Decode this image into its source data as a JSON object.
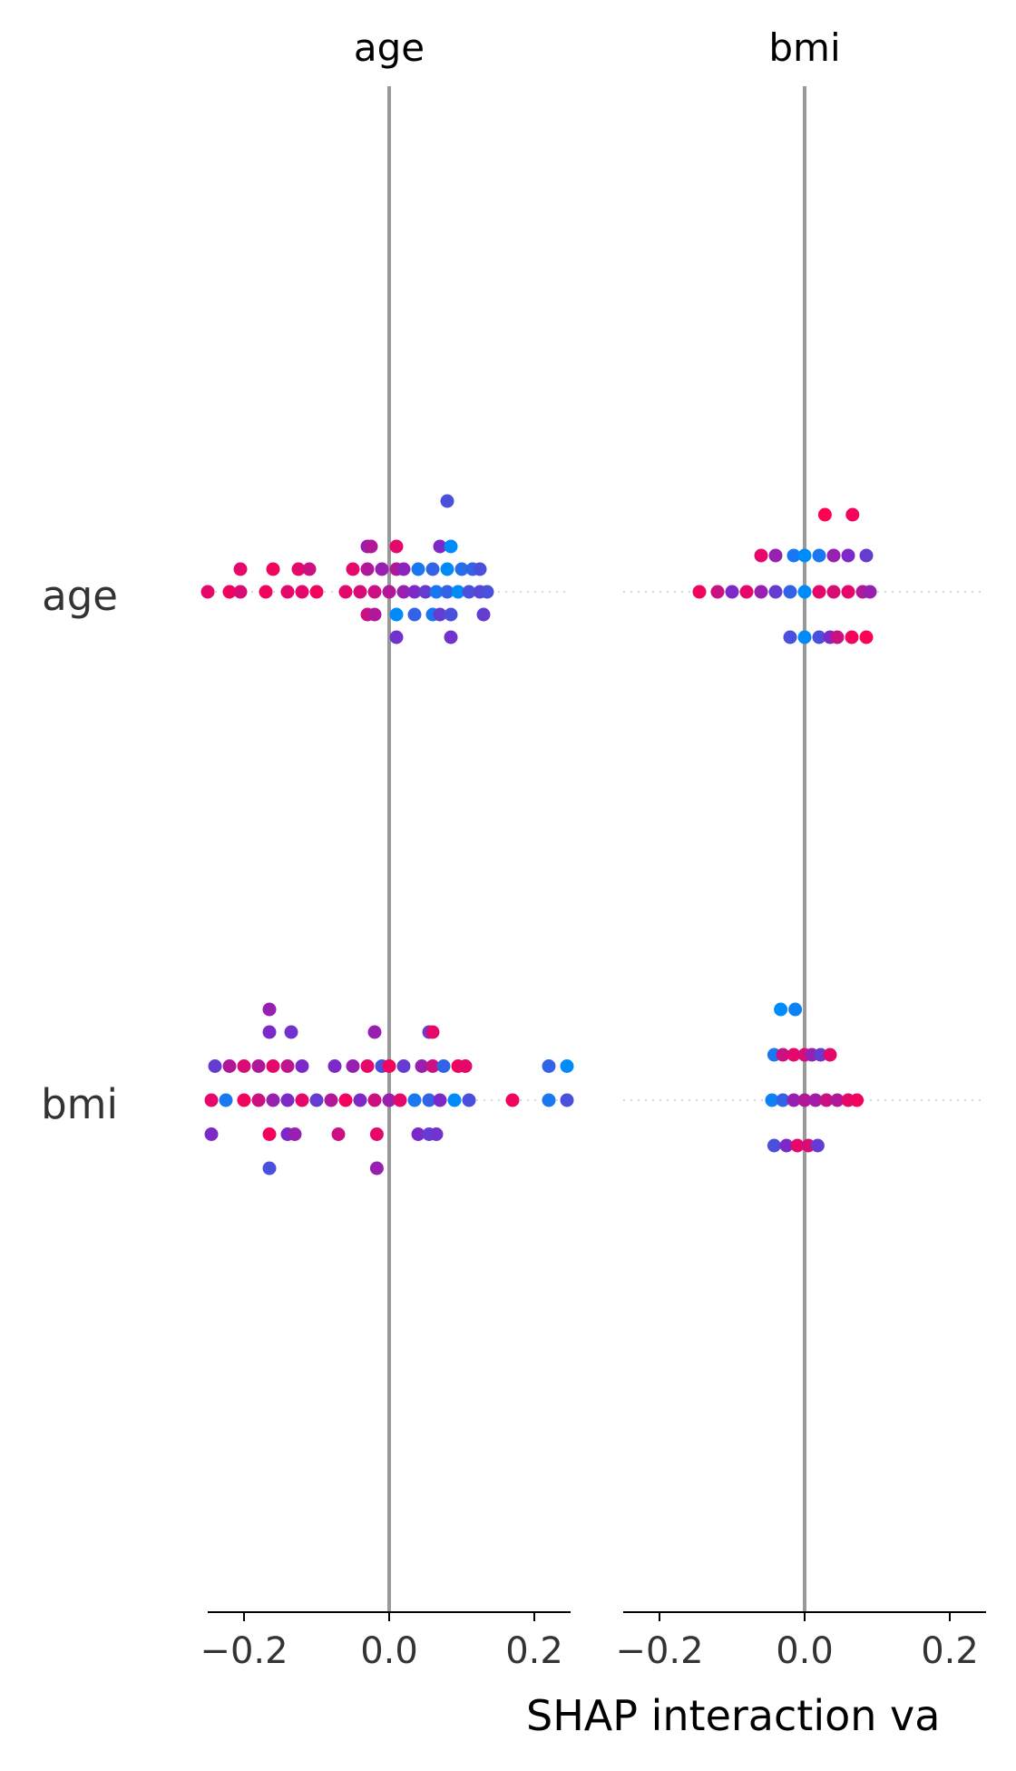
{
  "chart_data": {
    "type": "scatter",
    "title": "",
    "xlabel": "SHAP interaction va",
    "column_titles": [
      "age",
      "bmi"
    ],
    "row_labels": [
      "age",
      "bmi"
    ],
    "xlim": [
      -0.25,
      0.25
    ],
    "xticks": [
      -0.2,
      0.0,
      0.2
    ],
    "xtick_labels": [
      "−0.2",
      "0.0",
      "0.2"
    ],
    "zero_line": true,
    "grid": false,
    "legend": "none",
    "colors": {
      "low": "#008bfb",
      "high": "#ff0052",
      "zero_line": "#999999",
      "guide": "#cccccc",
      "axis": "#000000"
    },
    "note_color": "feature value from low (blue) to high (red)",
    "panels": [
      {
        "row": "age",
        "column": "age",
        "points": [
          {
            "x": 0.08,
            "offset": 2,
            "c": 0.3
          },
          {
            "x": -0.03,
            "offset": 1,
            "c": 0.6
          },
          {
            "x": -0.025,
            "offset": 1,
            "c": 0.7
          },
          {
            "x": 0.01,
            "offset": 1,
            "c": 0.9
          },
          {
            "x": 0.07,
            "offset": 1,
            "c": 0.5
          },
          {
            "x": 0.085,
            "offset": 1,
            "c": 0.0
          },
          {
            "x": -0.205,
            "offset": 0.5,
            "c": 0.9
          },
          {
            "x": -0.16,
            "offset": 0.5,
            "c": 0.95
          },
          {
            "x": -0.125,
            "offset": 0.5,
            "c": 0.9
          },
          {
            "x": -0.11,
            "offset": 0.5,
            "c": 0.8
          },
          {
            "x": -0.05,
            "offset": 0.5,
            "c": 0.9
          },
          {
            "x": -0.03,
            "offset": 0.5,
            "c": 0.7
          },
          {
            "x": -0.01,
            "offset": 0.5,
            "c": 0.6
          },
          {
            "x": 0.01,
            "offset": 0.5,
            "c": 0.7
          },
          {
            "x": 0.02,
            "offset": 0.5,
            "c": 0.55
          },
          {
            "x": 0.04,
            "offset": 0.5,
            "c": 0.1
          },
          {
            "x": 0.06,
            "offset": 0.5,
            "c": 0.2
          },
          {
            "x": 0.08,
            "offset": 0.5,
            "c": 0.0
          },
          {
            "x": 0.1,
            "offset": 0.5,
            "c": 0.15
          },
          {
            "x": 0.115,
            "offset": 0.5,
            "c": 0.2
          },
          {
            "x": 0.125,
            "offset": 0.5,
            "c": 0.3
          },
          {
            "x": -0.25,
            "offset": 0,
            "c": 0.9
          },
          {
            "x": -0.22,
            "offset": 0,
            "c": 0.95
          },
          {
            "x": -0.205,
            "offset": 0,
            "c": 0.85
          },
          {
            "x": -0.17,
            "offset": 0,
            "c": 0.95
          },
          {
            "x": -0.14,
            "offset": 0,
            "c": 0.9
          },
          {
            "x": -0.12,
            "offset": 0,
            "c": 0.9
          },
          {
            "x": -0.1,
            "offset": 0,
            "c": 0.95
          },
          {
            "x": -0.06,
            "offset": 0,
            "c": 0.9
          },
          {
            "x": -0.04,
            "offset": 0,
            "c": 0.85
          },
          {
            "x": -0.02,
            "offset": 0,
            "c": 0.8
          },
          {
            "x": 0.0,
            "offset": 0,
            "c": 0.7
          },
          {
            "x": 0.02,
            "offset": 0,
            "c": 0.6
          },
          {
            "x": 0.035,
            "offset": 0,
            "c": 0.5
          },
          {
            "x": 0.05,
            "offset": 0,
            "c": 0.4
          },
          {
            "x": 0.065,
            "offset": 0,
            "c": 0.1
          },
          {
            "x": 0.08,
            "offset": 0,
            "c": 0.2
          },
          {
            "x": 0.095,
            "offset": 0,
            "c": 0.0
          },
          {
            "x": 0.11,
            "offset": 0,
            "c": 0.3
          },
          {
            "x": 0.125,
            "offset": 0,
            "c": 0.35
          },
          {
            "x": 0.135,
            "offset": 0,
            "c": 0.3
          },
          {
            "x": -0.03,
            "offset": -0.5,
            "c": 0.8
          },
          {
            "x": -0.02,
            "offset": -0.5,
            "c": 0.7
          },
          {
            "x": 0.01,
            "offset": -0.5,
            "c": 0.0
          },
          {
            "x": 0.035,
            "offset": -0.5,
            "c": 0.2
          },
          {
            "x": 0.06,
            "offset": -0.5,
            "c": 0.1
          },
          {
            "x": 0.07,
            "offset": -0.5,
            "c": 0.4
          },
          {
            "x": 0.085,
            "offset": -0.5,
            "c": 0.3
          },
          {
            "x": 0.13,
            "offset": -0.5,
            "c": 0.4
          },
          {
            "x": 0.01,
            "offset": -1,
            "c": 0.45
          },
          {
            "x": 0.085,
            "offset": -1,
            "c": 0.45
          }
        ]
      },
      {
        "row": "age",
        "column": "bmi",
        "points": [
          {
            "x": 0.028,
            "offset": 1.7,
            "c": 1.0
          },
          {
            "x": 0.066,
            "offset": 1.7,
            "c": 0.95
          },
          {
            "x": -0.06,
            "offset": 0.8,
            "c": 0.9
          },
          {
            "x": -0.04,
            "offset": 0.8,
            "c": 0.6
          },
          {
            "x": -0.015,
            "offset": 0.8,
            "c": 0.1
          },
          {
            "x": 0.0,
            "offset": 0.8,
            "c": 0.0
          },
          {
            "x": 0.02,
            "offset": 0.8,
            "c": 0.1
          },
          {
            "x": 0.04,
            "offset": 0.8,
            "c": 0.6
          },
          {
            "x": 0.06,
            "offset": 0.8,
            "c": 0.5
          },
          {
            "x": 0.085,
            "offset": 0.8,
            "c": 0.4
          },
          {
            "x": -0.145,
            "offset": 0,
            "c": 0.95
          },
          {
            "x": -0.12,
            "offset": 0,
            "c": 0.8
          },
          {
            "x": -0.1,
            "offset": 0,
            "c": 0.5
          },
          {
            "x": -0.08,
            "offset": 0,
            "c": 0.9
          },
          {
            "x": -0.06,
            "offset": 0,
            "c": 0.6
          },
          {
            "x": -0.04,
            "offset": 0,
            "c": 0.4
          },
          {
            "x": -0.02,
            "offset": 0,
            "c": 0.2
          },
          {
            "x": 0.0,
            "offset": 0,
            "c": 0.0
          },
          {
            "x": 0.02,
            "offset": 0,
            "c": 0.9
          },
          {
            "x": 0.04,
            "offset": 0,
            "c": 0.85
          },
          {
            "x": 0.06,
            "offset": 0,
            "c": 0.9
          },
          {
            "x": 0.08,
            "offset": 0,
            "c": 0.7
          },
          {
            "x": 0.09,
            "offset": 0,
            "c": 0.6
          },
          {
            "x": -0.02,
            "offset": -1,
            "c": 0.3
          },
          {
            "x": 0.0,
            "offset": -1,
            "c": 0.0
          },
          {
            "x": 0.02,
            "offset": -1,
            "c": 0.3
          },
          {
            "x": 0.035,
            "offset": -1,
            "c": 0.5
          },
          {
            "x": 0.045,
            "offset": -1,
            "c": 0.8
          },
          {
            "x": 0.065,
            "offset": -1,
            "c": 0.95
          },
          {
            "x": 0.085,
            "offset": -1,
            "c": 1.0
          }
        ]
      },
      {
        "row": "bmi",
        "column": "age",
        "points": [
          {
            "x": -0.165,
            "offset": 2,
            "c": 0.6
          },
          {
            "x": -0.165,
            "offset": 1.5,
            "c": 0.5
          },
          {
            "x": -0.135,
            "offset": 1.5,
            "c": 0.45
          },
          {
            "x": -0.02,
            "offset": 1.5,
            "c": 0.6
          },
          {
            "x": 0.055,
            "offset": 1.5,
            "c": 0.4
          },
          {
            "x": 0.06,
            "offset": 1.5,
            "c": 0.9
          },
          {
            "x": -0.24,
            "offset": 0.75,
            "c": 0.4
          },
          {
            "x": -0.22,
            "offset": 0.75,
            "c": 0.7
          },
          {
            "x": -0.2,
            "offset": 0.75,
            "c": 0.85
          },
          {
            "x": -0.18,
            "offset": 0.75,
            "c": 0.7
          },
          {
            "x": -0.16,
            "offset": 0.75,
            "c": 0.9
          },
          {
            "x": -0.14,
            "offset": 0.75,
            "c": 0.75
          },
          {
            "x": -0.12,
            "offset": 0.75,
            "c": 0.5
          },
          {
            "x": -0.075,
            "offset": 0.75,
            "c": 0.5
          },
          {
            "x": -0.05,
            "offset": 0.75,
            "c": 0.6
          },
          {
            "x": -0.03,
            "offset": 0.75,
            "c": 0.9
          },
          {
            "x": -0.01,
            "offset": 0.75,
            "c": 0.3
          },
          {
            "x": 0.0,
            "offset": 0.75,
            "c": 0.95
          },
          {
            "x": 0.02,
            "offset": 0.75,
            "c": 0.4
          },
          {
            "x": 0.045,
            "offset": 0.75,
            "c": 0.6
          },
          {
            "x": 0.06,
            "offset": 0.75,
            "c": 0.8
          },
          {
            "x": 0.075,
            "offset": 0.75,
            "c": 0.2
          },
          {
            "x": 0.095,
            "offset": 0.75,
            "c": 0.95
          },
          {
            "x": 0.105,
            "offset": 0.75,
            "c": 0.9
          },
          {
            "x": 0.22,
            "offset": 0.75,
            "c": 0.2
          },
          {
            "x": 0.245,
            "offset": 0.75,
            "c": 0.0
          },
          {
            "x": -0.245,
            "offset": 0,
            "c": 0.9
          },
          {
            "x": -0.225,
            "offset": 0,
            "c": 0.1
          },
          {
            "x": -0.2,
            "offset": 0,
            "c": 0.95
          },
          {
            "x": -0.18,
            "offset": 0,
            "c": 0.8
          },
          {
            "x": -0.16,
            "offset": 0,
            "c": 0.6
          },
          {
            "x": -0.14,
            "offset": 0,
            "c": 0.5
          },
          {
            "x": -0.12,
            "offset": 0,
            "c": 0.9
          },
          {
            "x": -0.1,
            "offset": 0,
            "c": 0.4
          },
          {
            "x": -0.08,
            "offset": 0,
            "c": 0.7
          },
          {
            "x": -0.06,
            "offset": 0,
            "c": 0.95
          },
          {
            "x": -0.04,
            "offset": 0,
            "c": 0.5
          },
          {
            "x": -0.02,
            "offset": 0,
            "c": 0.8
          },
          {
            "x": 0.0,
            "offset": 0,
            "c": 0.6
          },
          {
            "x": 0.015,
            "offset": 0,
            "c": 0.9
          },
          {
            "x": 0.035,
            "offset": 0,
            "c": 0.1
          },
          {
            "x": 0.055,
            "offset": 0,
            "c": 0.2
          },
          {
            "x": 0.07,
            "offset": 0,
            "c": 0.5
          },
          {
            "x": 0.09,
            "offset": 0,
            "c": 0.0
          },
          {
            "x": 0.11,
            "offset": 0,
            "c": 0.3
          },
          {
            "x": 0.17,
            "offset": 0,
            "c": 0.95
          },
          {
            "x": 0.22,
            "offset": 0,
            "c": 0.1
          },
          {
            "x": 0.245,
            "offset": 0,
            "c": 0.3
          },
          {
            "x": -0.245,
            "offset": -0.75,
            "c": 0.5
          },
          {
            "x": -0.165,
            "offset": -0.75,
            "c": 0.95
          },
          {
            "x": -0.14,
            "offset": -0.75,
            "c": 0.5
          },
          {
            "x": -0.13,
            "offset": -0.75,
            "c": 0.6
          },
          {
            "x": -0.07,
            "offset": -0.75,
            "c": 0.8
          },
          {
            "x": -0.017,
            "offset": -0.75,
            "c": 0.9
          },
          {
            "x": 0.04,
            "offset": -0.75,
            "c": 0.5
          },
          {
            "x": 0.055,
            "offset": -0.75,
            "c": 0.4
          },
          {
            "x": 0.065,
            "offset": -0.75,
            "c": 0.45
          },
          {
            "x": -0.165,
            "offset": -1.5,
            "c": 0.3
          },
          {
            "x": -0.017,
            "offset": -1.5,
            "c": 0.6
          }
        ]
      },
      {
        "row": "bmi",
        "column": "bmi",
        "points": [
          {
            "x": -0.033,
            "offset": 2,
            "c": 0.0
          },
          {
            "x": -0.013,
            "offset": 2,
            "c": 0.05
          },
          {
            "x": -0.042,
            "offset": 1,
            "c": 0.1
          },
          {
            "x": -0.03,
            "offset": 1,
            "c": 0.8
          },
          {
            "x": -0.015,
            "offset": 1,
            "c": 0.9
          },
          {
            "x": 0.0,
            "offset": 1,
            "c": 0.85
          },
          {
            "x": 0.01,
            "offset": 1,
            "c": 0.6
          },
          {
            "x": 0.022,
            "offset": 1,
            "c": 0.4
          },
          {
            "x": 0.035,
            "offset": 1,
            "c": 0.9
          },
          {
            "x": -0.045,
            "offset": 0,
            "c": 0.05
          },
          {
            "x": -0.03,
            "offset": 0,
            "c": 0.2
          },
          {
            "x": -0.015,
            "offset": 0,
            "c": 0.6
          },
          {
            "x": 0.0,
            "offset": 0,
            "c": 0.7
          },
          {
            "x": 0.015,
            "offset": 0,
            "c": 0.65
          },
          {
            "x": 0.03,
            "offset": 0,
            "c": 0.8
          },
          {
            "x": 0.045,
            "offset": 0,
            "c": 0.7
          },
          {
            "x": 0.06,
            "offset": 0,
            "c": 0.9
          },
          {
            "x": 0.072,
            "offset": 0,
            "c": 0.95
          },
          {
            "x": -0.042,
            "offset": -1,
            "c": 0.3
          },
          {
            "x": -0.025,
            "offset": -1,
            "c": 0.5
          },
          {
            "x": -0.01,
            "offset": -1,
            "c": 0.9
          },
          {
            "x": 0.005,
            "offset": -1,
            "c": 0.85
          },
          {
            "x": 0.018,
            "offset": -1,
            "c": 0.4
          }
        ]
      }
    ]
  }
}
